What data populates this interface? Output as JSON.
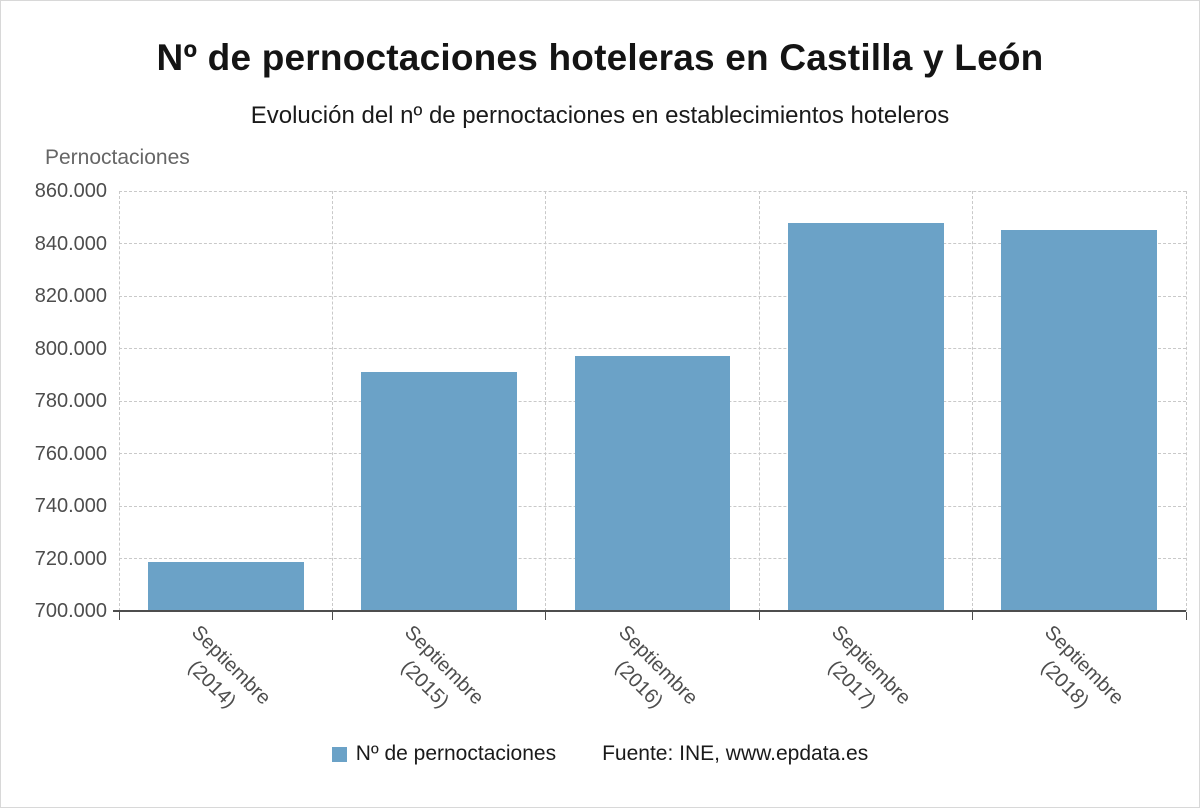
{
  "header": {
    "title": "Nº de pernoctaciones hoteleras en Castilla y León",
    "subtitle": "Evolución del nº de pernoctaciones en establecimientos hoteleros"
  },
  "chart_data": {
    "type": "bar",
    "title": "Nº de pernoctaciones hoteleras en Castilla y León",
    "subtitle": "Evolución del nº de pernoctaciones en establecimientos hoteleros",
    "y_axis_title": "Pernoctaciones",
    "categories": [
      "Septiembre\n(2014)",
      "Septiembre\n(2015)",
      "Septiembre\n(2016)",
      "Septiembre\n(2017)",
      "Septiembre\n(2018)"
    ],
    "values": [
      718500,
      791200,
      797000,
      848000,
      845200
    ],
    "ylim": [
      700000,
      860000
    ],
    "ytick_values": [
      700000,
      720000,
      740000,
      760000,
      780000,
      800000,
      820000,
      840000,
      860000
    ],
    "ytick_labels": [
      "700.000",
      "720.000",
      "740.000",
      "760.000",
      "780.000",
      "800.000",
      "820.000",
      "840.000",
      "860.000"
    ],
    "grid": true,
    "grid_style": "dashed",
    "bar_color": "#6ba2c7",
    "bar_width_frac": 0.73,
    "axis_color": "#4d4d4d",
    "legend_label": "Nº de pernoctaciones",
    "legend_position": "bottom",
    "source": "Fuente: INE, www.epdata.es"
  }
}
